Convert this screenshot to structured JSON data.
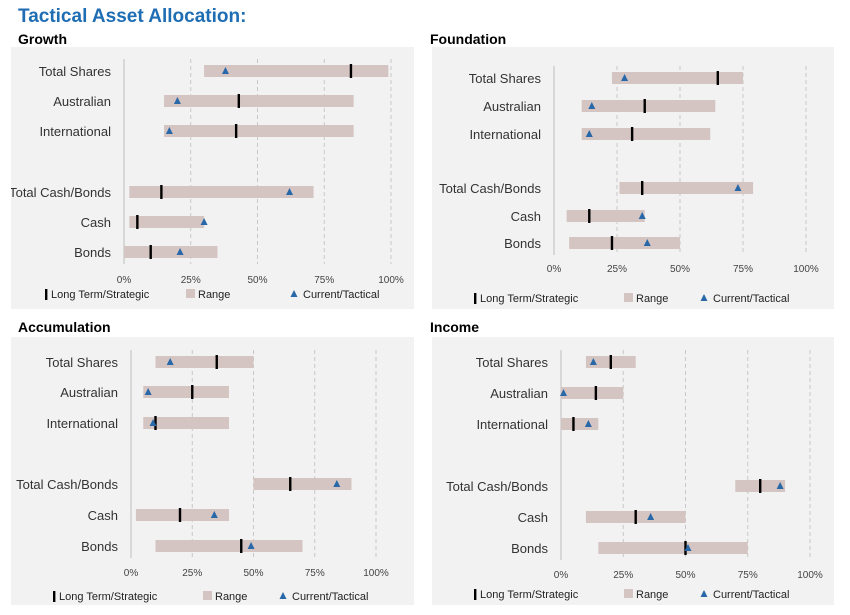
{
  "page_title": "Tactical Asset Allocation:",
  "colors": {
    "title": "#1f6db3",
    "range": "#d4c4c2",
    "strategic": "#000000",
    "tactical": "#2868a8",
    "grid": "#c8c8c8",
    "panel_bg": "#f2f2f2"
  },
  "legend": {
    "strategic": "Long Term/Strategic",
    "range": "Range",
    "tactical": "Current/Tactical"
  },
  "chart_data": [
    {
      "type": "range-bar",
      "title": "Growth",
      "categories": [
        "Total Shares",
        "Australian",
        "International",
        "Total Cash/Bonds",
        "Cash",
        "Bonds"
      ],
      "range_min": [
        30,
        15,
        15,
        2,
        2,
        0
      ],
      "range_max": [
        99,
        86,
        86,
        71,
        30,
        35
      ],
      "strategic": [
        85,
        43,
        42,
        14,
        5,
        10
      ],
      "tactical": [
        38,
        20,
        17,
        62,
        30,
        21
      ],
      "xlim": [
        0,
        100
      ],
      "ticks": [
        "0%",
        "25%",
        "50%",
        "75%",
        "100%"
      ]
    },
    {
      "type": "range-bar",
      "title": "Foundation",
      "categories": [
        "Total Shares",
        "Australian",
        "International",
        "Total Cash/Bonds",
        "Cash",
        "Bonds"
      ],
      "range_min": [
        23,
        11,
        11,
        26,
        5,
        6
      ],
      "range_max": [
        75,
        64,
        62,
        79,
        36,
        50
      ],
      "strategic": [
        65,
        36,
        31,
        35,
        14,
        23
      ],
      "tactical": [
        28,
        15,
        14,
        73,
        35,
        37
      ],
      "xlim": [
        0,
        100
      ],
      "ticks": [
        "0%",
        "25%",
        "50%",
        "75%",
        "100%"
      ]
    },
    {
      "type": "range-bar",
      "title": "Accumulation",
      "categories": [
        "Total Shares",
        "Australian",
        "International",
        "Total Cash/Bonds",
        "Cash",
        "Bonds"
      ],
      "range_min": [
        10,
        5,
        5,
        50,
        2,
        10
      ],
      "range_max": [
        50,
        40,
        40,
        90,
        40,
        70
      ],
      "strategic": [
        35,
        25,
        10,
        65,
        20,
        45
      ],
      "tactical": [
        16,
        7,
        9,
        84,
        34,
        49
      ],
      "xlim": [
        0,
        100
      ],
      "ticks": [
        "0%",
        "25%",
        "50%",
        "75%",
        "100%"
      ]
    },
    {
      "type": "range-bar",
      "title": "Income",
      "categories": [
        "Total Shares",
        "Australian",
        "International",
        "Total Cash/Bonds",
        "Cash",
        "Bonds"
      ],
      "range_min": [
        10,
        0,
        0,
        70,
        10,
        15
      ],
      "range_max": [
        30,
        25,
        15,
        90,
        50,
        75
      ],
      "strategic": [
        20,
        14,
        5,
        80,
        30,
        50
      ],
      "tactical": [
        13,
        1,
        11,
        88,
        36,
        51
      ],
      "xlim": [
        0,
        100
      ],
      "ticks": [
        "0%",
        "25%",
        "50%",
        "75%",
        "100%"
      ]
    }
  ]
}
